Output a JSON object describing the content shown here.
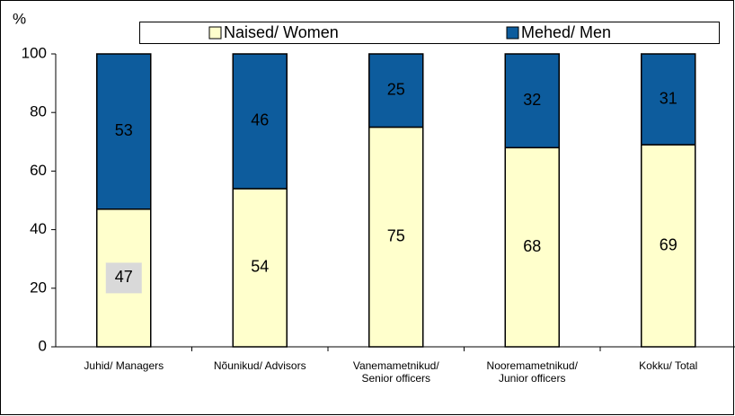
{
  "chart_data": {
    "type": "stacked_bar",
    "y_label": "%",
    "categories": [
      "Juhid/ Managers",
      "Nõunikud/ Advisors",
      "Vanemametnikud/ Senior officers",
      "Nooremametnikud/ Junior officers",
      "Kokku/ Total"
    ],
    "series": [
      {
        "name": "Naised/ Women",
        "color": "#ffffcc",
        "values": [
          47,
          54,
          75,
          68,
          69
        ]
      },
      {
        "name": "Mehed/ Men",
        "color": "#0d5c9d",
        "values": [
          53,
          46,
          25,
          32,
          31
        ]
      }
    ],
    "ylim": [
      0,
      100
    ],
    "yticks": [
      0,
      20,
      40,
      60,
      80,
      100
    ],
    "legend": "top"
  }
}
